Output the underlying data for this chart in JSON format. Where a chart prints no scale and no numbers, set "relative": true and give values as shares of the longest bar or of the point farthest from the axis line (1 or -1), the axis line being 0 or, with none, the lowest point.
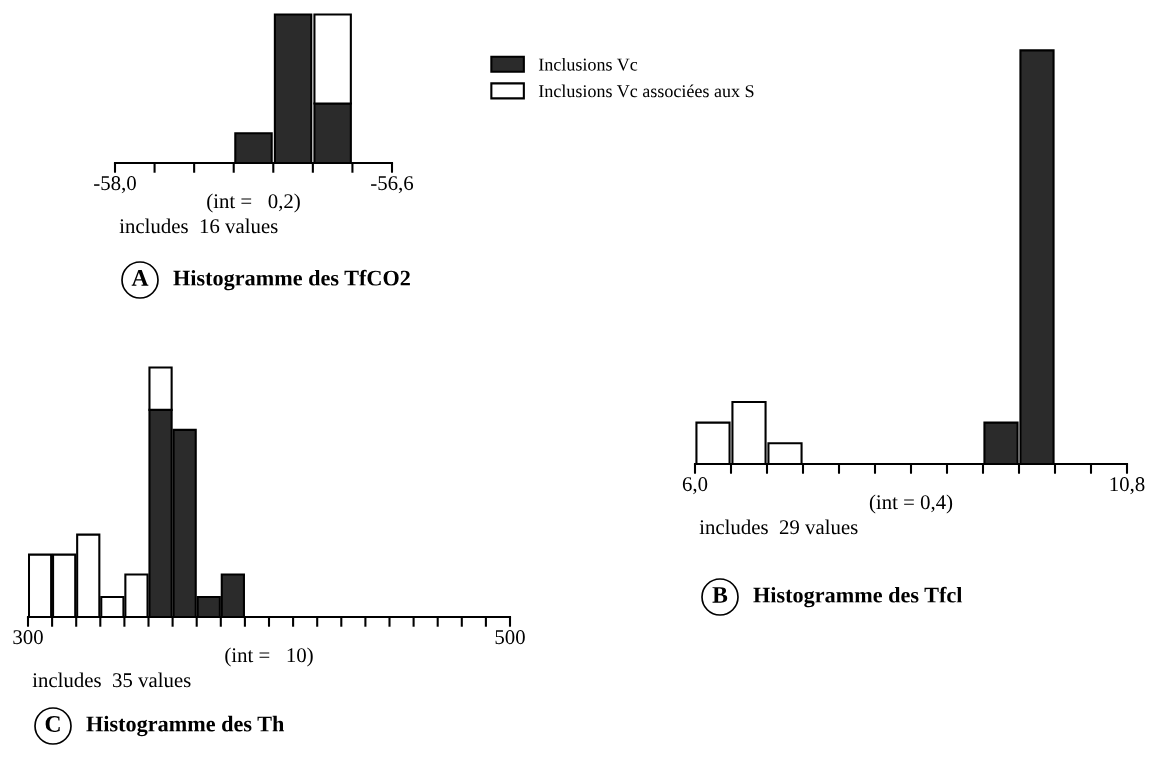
{
  "chart_data": [
    {
      "type": "bar",
      "title": "Histogramme des TfCO2",
      "relative": true,
      "stacked": true,
      "legend": "right",
      "x": [
        -57.3,
        -57.1,
        -56.9
      ],
      "xlim": [
        -58.0,
        -56.6
      ],
      "xticks": [
        {
          "value": -58.0,
          "label": "-58,0"
        },
        {
          "value": -57.8,
          "label": null
        },
        {
          "value": -57.6,
          "label": null
        },
        {
          "value": -57.4,
          "label": null
        },
        {
          "value": -57.2,
          "label": null
        },
        {
          "value": -57.0,
          "label": null
        },
        {
          "value": -56.8,
          "label": null
        },
        {
          "value": -56.6,
          "label": "-56,6"
        }
      ],
      "annotations": [
        "(int =   0,2)",
        "includes  16 values",
        "A"
      ],
      "series": [
        {
          "name": "Inclusions Vc",
          "color": "#2b2b2b",
          "values": [
            0.2,
            1,
            0.4
          ]
        },
        {
          "name": "Inclusions Vc associées aux S",
          "color": "#ffffff",
          "values": [
            0,
            0,
            0.6
          ]
        }
      ]
    },
    {
      "type": "bar",
      "title": "Histogramme des Tfcl",
      "relative": true,
      "stacked": true,
      "x": [
        6.2,
        6.6,
        7.0,
        9.4,
        9.8
      ],
      "xlim": [
        6.0,
        10.8
      ],
      "xticks": [
        {
          "value": 6.0,
          "label": "6,0"
        },
        {
          "value": 6.4,
          "label": null
        },
        {
          "value": 6.8,
          "label": null
        },
        {
          "value": 7.2,
          "label": null
        },
        {
          "value": 7.6,
          "label": null
        },
        {
          "value": 8.0,
          "label": null
        },
        {
          "value": 8.4,
          "label": null
        },
        {
          "value": 8.8,
          "label": null
        },
        {
          "value": 9.2,
          "label": null
        },
        {
          "value": 9.6,
          "label": null
        },
        {
          "value": 10.0,
          "label": null
        },
        {
          "value": 10.4,
          "label": null
        },
        {
          "value": 10.8,
          "label": "10,8"
        }
      ],
      "annotations": [
        "(int = 0,4)",
        "includes  29 values",
        "B"
      ],
      "series": [
        {
          "color": "#2b2b2b",
          "values": [
            0,
            0,
            0,
            0.1,
            1
          ]
        },
        {
          "color": "#ffffff",
          "values": [
            0.1,
            0.15,
            0.05,
            0,
            0
          ]
        }
      ]
    },
    {
      "type": "bar",
      "title": "Histogramme des Th",
      "relative": true,
      "stacked": true,
      "x": [
        305,
        315,
        325,
        335,
        345,
        355,
        365,
        375,
        385
      ],
      "xlim": [
        300,
        500
      ],
      "xticks": [
        300,
        {
          "value": 310,
          "label": null
        },
        {
          "value": 320,
          "label": null
        },
        {
          "value": 330,
          "label": null
        },
        {
          "value": 340,
          "label": null
        },
        {
          "value": 350,
          "label": null
        },
        {
          "value": 360,
          "label": null
        },
        {
          "value": 370,
          "label": null
        },
        {
          "value": 380,
          "label": null
        },
        {
          "value": 390,
          "label": null
        },
        {
          "value": 400,
          "label": null
        },
        {
          "value": 410,
          "label": null
        },
        {
          "value": 420,
          "label": null
        },
        {
          "value": 430,
          "label": null
        },
        {
          "value": 440,
          "label": null
        },
        {
          "value": 450,
          "label": null
        },
        {
          "value": 460,
          "label": null
        },
        {
          "value": 470,
          "label": null
        },
        {
          "value": 480,
          "label": null
        },
        {
          "value": 490,
          "label": null
        },
        500
      ],
      "annotations": [
        "(int =   10)",
        "includes  35 values",
        "C"
      ],
      "series": [
        {
          "color": "#2b2b2b",
          "values": [
            0,
            0,
            0,
            0,
            0,
            0.83,
            0.75,
            0.08,
            0.17
          ]
        },
        {
          "color": "#ffffff",
          "values": [
            0.25,
            0.25,
            0.33,
            0.08,
            0.17,
            0.17,
            0,
            0,
            0
          ]
        }
      ]
    }
  ]
}
